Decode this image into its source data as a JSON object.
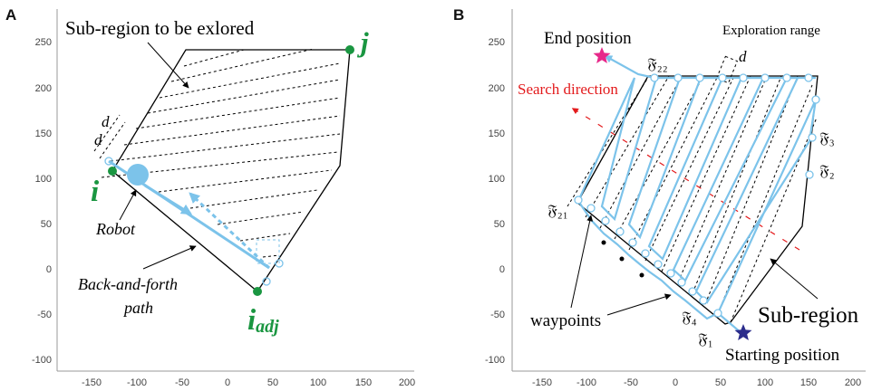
{
  "panels": [
    {
      "letter": "A",
      "x_ticks": [
        "-150",
        "-100",
        "-50",
        "0",
        "50",
        "100",
        "150",
        "200"
      ],
      "y_ticks": [
        "250",
        "200",
        "150",
        "100",
        "50",
        "0",
        "-50",
        "-100"
      ],
      "labels": {
        "title": "Sub-region to be exlored",
        "point_j": "j",
        "point_i": "i",
        "point_iadj_main": "i",
        "point_iadj_sub": "adj",
        "d_top": "d",
        "d_bottom": "d",
        "robot": "Robot",
        "path_line1": "Back-and-forth",
        "path_line2": "path"
      }
    },
    {
      "letter": "B",
      "x_ticks": [
        "-150",
        "-100",
        "-50",
        "0",
        "50",
        "100",
        "150",
        "200"
      ],
      "y_ticks": [
        "250",
        "200",
        "150",
        "100",
        "50",
        "0",
        "-50",
        "-100"
      ],
      "labels": {
        "end_position": "End position",
        "exploration_range": "Exploration range",
        "d": "d",
        "search_direction": "Search direction",
        "f22": "𝔉₂₂",
        "f21": "𝔉₂₁",
        "f3": "𝔉₃",
        "f2": "𝔉₂",
        "f4": "𝔉₄",
        "f1": "𝔉₁",
        "waypoints": "waypoints",
        "sub_region": "Sub-region",
        "starting_position": "Starting position"
      }
    }
  ],
  "colors": {
    "green": "#1a9641",
    "light_blue": "#7cc3ea",
    "red": "#e31a1c",
    "magenta": "#e7298a",
    "navy": "#2b2c8c"
  }
}
